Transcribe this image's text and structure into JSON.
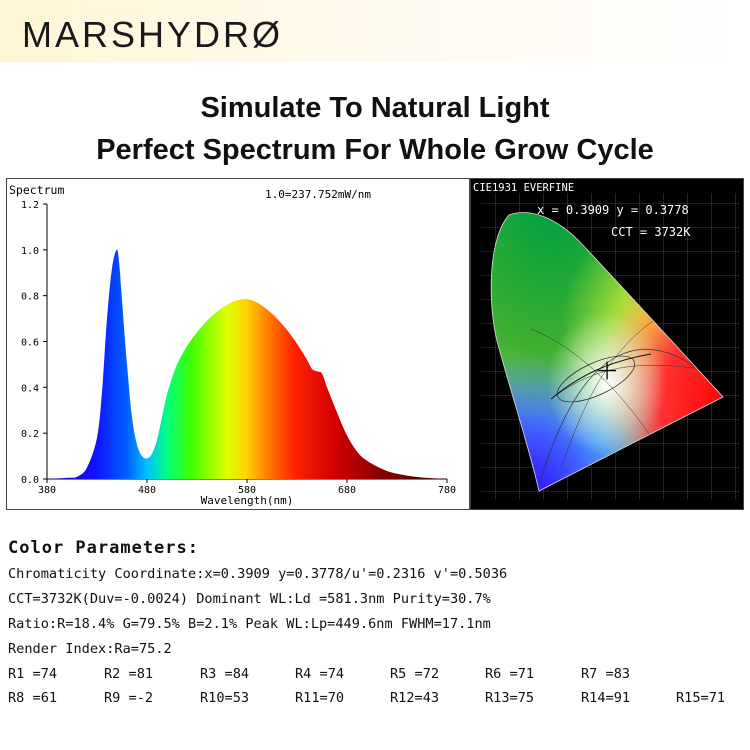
{
  "brand": {
    "logo_text": "MARSHYDRØ"
  },
  "headline": {
    "line1": "Simulate To Natural Light",
    "line2": "Perfect Spectrum For Whole Grow Cycle"
  },
  "chart_data": [
    {
      "type": "area",
      "title": "Spectrum",
      "annotation": "1.0=237.752mW/nm",
      "xlabel": "Wavelength(nm)",
      "ylabel": "",
      "xlim": [
        380,
        780
      ],
      "ylim": [
        0,
        1.2
      ],
      "xticks": [
        380,
        480,
        580,
        680,
        780
      ],
      "yticks": [
        "0.0",
        "0.2",
        "0.4",
        "0.6",
        "0.8",
        "1.0",
        "1.2"
      ],
      "grid": false,
      "x": [
        380,
        400,
        410,
        420,
        430,
        435,
        440,
        445,
        449.6,
        452,
        455,
        460,
        465,
        470,
        475,
        480,
        485,
        490,
        495,
        500,
        505,
        510,
        520,
        530,
        540,
        550,
        560,
        570,
        580,
        590,
        600,
        610,
        620,
        630,
        640,
        645,
        650,
        655,
        660,
        670,
        680,
        690,
        700,
        720,
        740,
        760,
        780
      ],
      "y": [
        0.0,
        0.005,
        0.01,
        0.05,
        0.18,
        0.38,
        0.7,
        0.92,
        1.0,
        0.95,
        0.78,
        0.5,
        0.27,
        0.15,
        0.1,
        0.09,
        0.11,
        0.17,
        0.27,
        0.37,
        0.44,
        0.5,
        0.58,
        0.64,
        0.69,
        0.73,
        0.76,
        0.78,
        0.785,
        0.77,
        0.74,
        0.7,
        0.65,
        0.59,
        0.52,
        0.48,
        0.47,
        0.46,
        0.4,
        0.29,
        0.19,
        0.12,
        0.08,
        0.035,
        0.015,
        0.005,
        0.0
      ]
    },
    {
      "type": "scatter",
      "title": "CIE1931 EVERFINE",
      "readout_xy": "x = 0.3909  y = 0.3778",
      "readout_cct": "CCT = 3732K",
      "x": [
        0.3909
      ],
      "y": [
        0.3778
      ]
    }
  ],
  "params": {
    "title": "Color Parameters:",
    "lines": [
      "Chromaticity Coordinate:x=0.3909  y=0.3778/u'=0.2316 v'=0.5036",
      "CCT=3732K(Duv=-0.0024) Dominant WL:Ld =581.3nm Purity=30.7%",
      "Ratio:R=18.4% G=79.5% B=2.1%  Peak WL:Lp=449.6nm  FWHM=17.1nm",
      "Render Index:Ra=75.2"
    ],
    "r_row1": [
      "R1 =74",
      "R2 =81",
      "R3 =84",
      "R4 =74",
      "R5 =72",
      "R6 =71",
      "R7 =83"
    ],
    "r_row2": [
      "R8 =61",
      "R9 =-2",
      "R10=53",
      "R11=70",
      "R12=43",
      "R13=75",
      "R14=91",
      "R15=71"
    ]
  }
}
